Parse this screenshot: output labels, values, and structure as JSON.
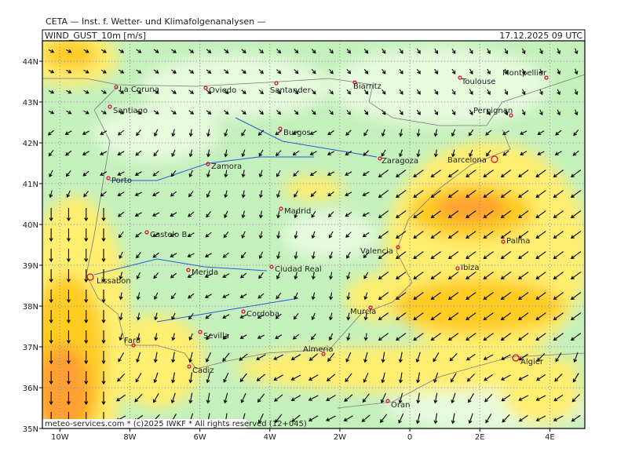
{
  "header": {
    "title": "CETA — Inst. f. Wetter- und Klimafolgenanalysen —",
    "field": "WIND_GUST_10m [m/s]",
    "valid_time": "17.12.2025 09 UTC"
  },
  "map": {
    "xlim": [
      -10.5,
      5
    ],
    "ylim": [
      35,
      44.5
    ],
    "xticks": [
      {
        "value": -10,
        "label": "10W"
      },
      {
        "value": -8,
        "label": "8W"
      },
      {
        "value": -6,
        "label": "6W"
      },
      {
        "value": -4,
        "label": "4W"
      },
      {
        "value": -2,
        "label": "2W"
      },
      0,
      {
        "value": 2,
        "label": "2E"
      },
      {
        "value": 4,
        "label": "4E"
      }
    ],
    "yticks": [
      {
        "value": 35,
        "label": "35N"
      },
      {
        "value": 36,
        "label": "36N"
      },
      {
        "value": 37,
        "label": "37N"
      },
      {
        "value": 38,
        "label": "38N"
      },
      {
        "value": 39,
        "label": "39N"
      },
      {
        "value": 40,
        "label": "40N"
      },
      {
        "value": 41,
        "label": "41N"
      },
      {
        "value": 42,
        "label": "42N"
      },
      {
        "value": 43,
        "label": "43N"
      },
      {
        "value": 44,
        "label": "44N"
      }
    ],
    "grid": true,
    "cities": [
      "La Coruna",
      "Santiago",
      "Oviedo",
      "Santander",
      "Biarritz",
      "Toulouse",
      "Montpellier",
      "Perpignan",
      "Burgos",
      "Zaragoza",
      "Barcelona",
      "Zamora",
      "Porto",
      "Madrid",
      "Castelo B.",
      "Valencia",
      "Palma",
      "Merida",
      "Lissabon",
      "Ciudad Real",
      "Ibiza",
      "Murcia",
      "Cordoba",
      "Sevilla",
      "Faro",
      "Almeria",
      "Cadiz",
      "Algier",
      "Oran"
    ]
  },
  "footer": "meteo-services.com * (c)2025 IWKF * All rights reserved (12+045)"
}
